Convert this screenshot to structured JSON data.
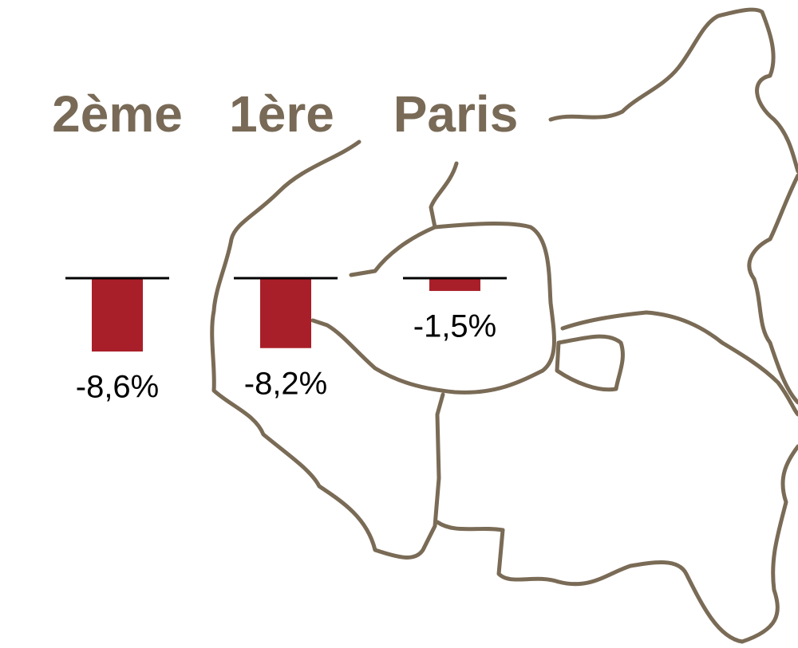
{
  "chart_data": {
    "type": "bar",
    "categories": [
      "2ème",
      "1ère",
      "Paris"
    ],
    "values": [
      -8.6,
      -8.2,
      -1.5
    ],
    "value_labels": [
      "-8,6%",
      "-8,2%",
      "-1,5%"
    ],
    "color": "#a91f29"
  }
}
